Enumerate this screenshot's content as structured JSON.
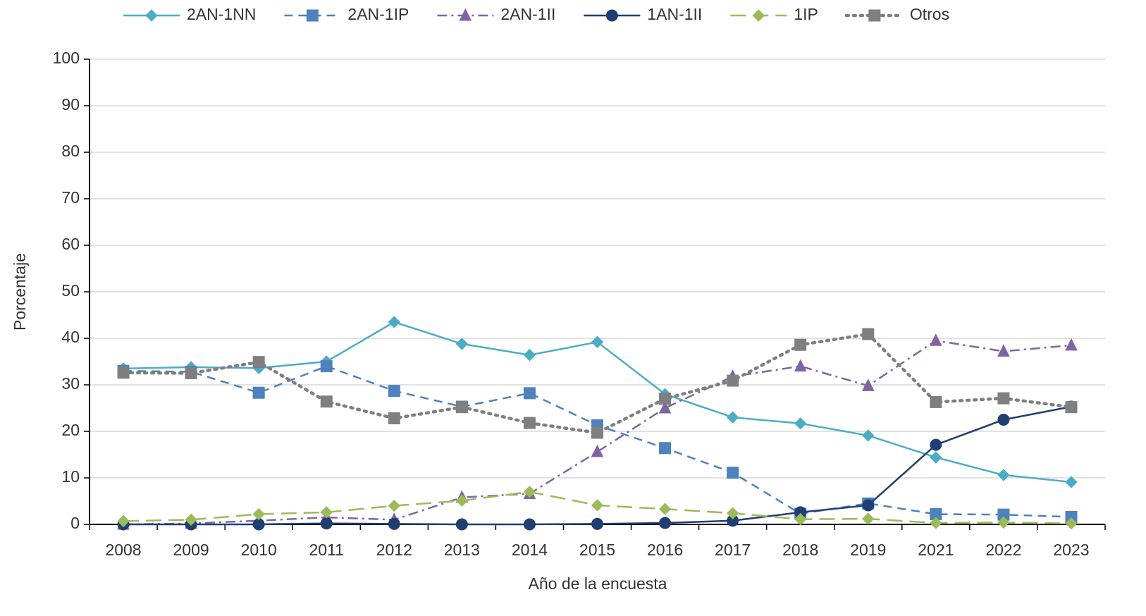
{
  "chart_data": {
    "type": "line",
    "x_label": "Año de la encuesta",
    "y_label": "Porcentaje",
    "categories": [
      "2008",
      "2009",
      "2010",
      "2011",
      "2012",
      "2013",
      "2014",
      "2015",
      "2016",
      "2017",
      "2018",
      "2019",
      "2021",
      "2022",
      "2023"
    ],
    "ylim": [
      0,
      100
    ],
    "yticks": [
      0,
      10,
      20,
      30,
      40,
      50,
      60,
      70,
      80,
      90,
      100
    ],
    "grid": true,
    "legend": "top",
    "series": [
      {
        "name": "2AN-1NN",
        "color": "#4bacc6",
        "dash": "solid",
        "marker": "diamond",
        "values": [
          33.5,
          33.8,
          33.6,
          35.0,
          43.5,
          38.8,
          36.4,
          39.2,
          28.0,
          23.0,
          21.7,
          19.1,
          14.4,
          10.6,
          9.1
        ]
      },
      {
        "name": "2AN-1IP",
        "color": "#4f81bd",
        "dash": "dashed",
        "marker": "square",
        "values": [
          33.0,
          32.8,
          28.3,
          34.0,
          28.7,
          25.3,
          28.2,
          21.3,
          16.4,
          11.1,
          2.3,
          4.5,
          2.2,
          2.1,
          1.6
        ]
      },
      {
        "name": "2AN-1II",
        "color": "#8064a2",
        "dash": "dashdot",
        "marker": "triangle",
        "values": [
          0.0,
          0.2,
          0.8,
          1.5,
          1.0,
          5.8,
          6.6,
          15.6,
          25.0,
          31.8,
          34.0,
          29.8,
          39.5,
          37.2,
          38.5
        ]
      },
      {
        "name": "1AN-1II",
        "color": "#1f3f73",
        "dash": "solid",
        "marker": "circle",
        "values": [
          0.0,
          0.0,
          0.0,
          0.2,
          0.1,
          0.0,
          0.0,
          0.1,
          0.3,
          0.8,
          2.6,
          4.1,
          17.1,
          22.5,
          25.3
        ]
      },
      {
        "name": "1IP",
        "color": "#9bbb59",
        "dash": "longdash",
        "marker": "diamond",
        "values": [
          0.7,
          1.0,
          2.2,
          2.6,
          4.0,
          5.1,
          7.0,
          4.1,
          3.3,
          2.4,
          1.1,
          1.2,
          0.3,
          0.4,
          0.2
        ]
      },
      {
        "name": "Otros",
        "color": "#7f7f7f",
        "dash": "dotted",
        "marker": "square",
        "values": [
          32.6,
          32.5,
          34.9,
          26.4,
          22.8,
          25.2,
          21.8,
          19.7,
          27.0,
          30.9,
          38.6,
          40.9,
          26.3,
          27.1,
          25.2
        ]
      }
    ]
  }
}
